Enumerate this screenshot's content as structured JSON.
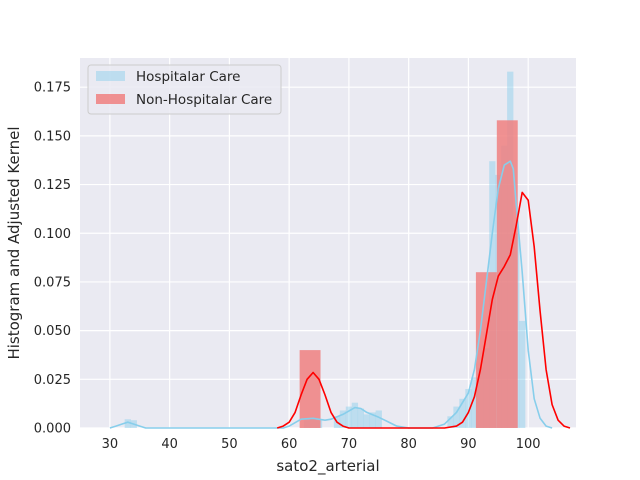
{
  "chart_data": {
    "type": "histogram",
    "xlabel": "sato2_arterial",
    "ylabel": "Histogram and Adjusted Kernel",
    "xlim": [
      25,
      108
    ],
    "ylim": [
      0,
      0.19
    ],
    "xticks": [
      30,
      40,
      50,
      60,
      70,
      80,
      90,
      100
    ],
    "yticks": [
      0.0,
      0.025,
      0.05,
      0.075,
      0.1,
      0.125,
      0.15,
      0.175
    ],
    "ytick_labels": [
      "0.000",
      "0.025",
      "0.050",
      "0.075",
      "0.100",
      "0.125",
      "0.150",
      "0.175"
    ],
    "grid": true,
    "legend_position": "top-left",
    "series": [
      {
        "name": "Hospitalar Care",
        "color": "#87ceeb",
        "bin_width": 1.05,
        "bins": [
          [
            33,
            0.0045
          ],
          [
            34,
            0.004
          ],
          [
            63,
            0.004
          ],
          [
            64,
            0.005
          ],
          [
            65,
            0.004
          ],
          [
            68,
            0.006
          ],
          [
            69,
            0.009
          ],
          [
            70,
            0.011
          ],
          [
            71,
            0.013
          ],
          [
            72,
            0.01
          ],
          [
            73,
            0.007
          ],
          [
            74,
            0.008
          ],
          [
            75,
            0.009
          ],
          [
            87,
            0.006
          ],
          [
            88,
            0.011
          ],
          [
            89,
            0.015
          ],
          [
            90,
            0.02
          ],
          [
            91,
            0.026
          ],
          [
            92,
            0.031
          ],
          [
            93,
            0.041
          ],
          [
            94,
            0.137
          ],
          [
            95,
            0.13
          ],
          [
            96,
            0.145
          ],
          [
            97,
            0.183
          ],
          [
            98,
            0.1
          ],
          [
            99,
            0.055
          ]
        ],
        "kde": [
          [
            30,
            0.0
          ],
          [
            31,
            0.001
          ],
          [
            32,
            0.002
          ],
          [
            33,
            0.003
          ],
          [
            34,
            0.002
          ],
          [
            35,
            0.001
          ],
          [
            36,
            0.0
          ],
          [
            59,
            0.0
          ],
          [
            60,
            0.001
          ],
          [
            62,
            0.0045
          ],
          [
            64,
            0.005
          ],
          [
            66,
            0.004
          ],
          [
            67,
            0.0045
          ],
          [
            69,
            0.007
          ],
          [
            71,
            0.0105
          ],
          [
            72,
            0.01
          ],
          [
            73,
            0.008
          ],
          [
            75,
            0.0055
          ],
          [
            76,
            0.004
          ],
          [
            77,
            0.0025
          ],
          [
            78,
            0.001
          ],
          [
            80,
            0.0
          ],
          [
            84,
            0.0
          ],
          [
            86,
            0.002
          ],
          [
            88,
            0.008
          ],
          [
            90,
            0.018
          ],
          [
            91,
            0.03
          ],
          [
            92,
            0.05
          ],
          [
            93,
            0.075
          ],
          [
            94,
            0.1
          ],
          [
            95,
            0.123
          ],
          [
            96,
            0.135
          ],
          [
            97,
            0.137
          ],
          [
            97.5,
            0.133
          ],
          [
            98,
            0.115
          ],
          [
            99,
            0.08
          ],
          [
            100,
            0.04
          ],
          [
            101,
            0.015
          ],
          [
            102,
            0.005
          ],
          [
            103,
            0.001
          ],
          [
            104,
            0.0
          ]
        ]
      },
      {
        "name": "Non-Hospitalar Care",
        "color": "#f08080",
        "line_color": "#ff0000",
        "bin_width": 3.5,
        "bins": [
          [
            63.5,
            0.04
          ],
          [
            93,
            0.08
          ],
          [
            96.5,
            0.158
          ]
        ],
        "kde": [
          [
            58,
            0.0
          ],
          [
            59,
            0.001
          ],
          [
            60,
            0.003
          ],
          [
            61,
            0.008
          ],
          [
            62,
            0.017
          ],
          [
            63,
            0.025
          ],
          [
            64,
            0.0285
          ],
          [
            65,
            0.025
          ],
          [
            66,
            0.017
          ],
          [
            67,
            0.008
          ],
          [
            68,
            0.003
          ],
          [
            69,
            0.001
          ],
          [
            70,
            0.0
          ],
          [
            86,
            0.0
          ],
          [
            88,
            0.001
          ],
          [
            89,
            0.003
          ],
          [
            90,
            0.008
          ],
          [
            91,
            0.016
          ],
          [
            92,
            0.03
          ],
          [
            93,
            0.048
          ],
          [
            94,
            0.066
          ],
          [
            95,
            0.078
          ],
          [
            96,
            0.083
          ],
          [
            97,
            0.089
          ],
          [
            98,
            0.104
          ],
          [
            99,
            0.121
          ],
          [
            100,
            0.117
          ],
          [
            101,
            0.093
          ],
          [
            102,
            0.06
          ],
          [
            103,
            0.03
          ],
          [
            104,
            0.012
          ],
          [
            105,
            0.004
          ],
          [
            106,
            0.001
          ],
          [
            107,
            0.0
          ]
        ]
      }
    ]
  }
}
